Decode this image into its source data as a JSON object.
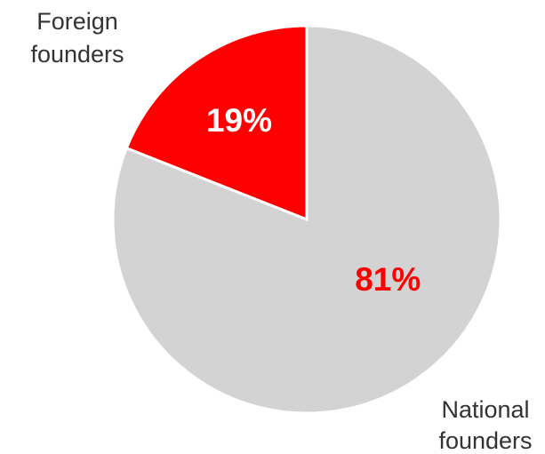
{
  "chart_data": {
    "type": "pie",
    "title": "",
    "series": [
      {
        "name": "Foreign founders",
        "label_lines": [
          "Foreign",
          "founders"
        ],
        "value": 19,
        "value_label": "19%",
        "color": "#ff0000",
        "label_color": "#ffffff",
        "legend_position": "top-left"
      },
      {
        "name": "National founders",
        "label_lines": [
          "National",
          "founders"
        ],
        "value": 81,
        "value_label": "81%",
        "color": "#d3d3d3",
        "label_color": "#ff0000",
        "legend_position": "bottom-right"
      }
    ]
  }
}
